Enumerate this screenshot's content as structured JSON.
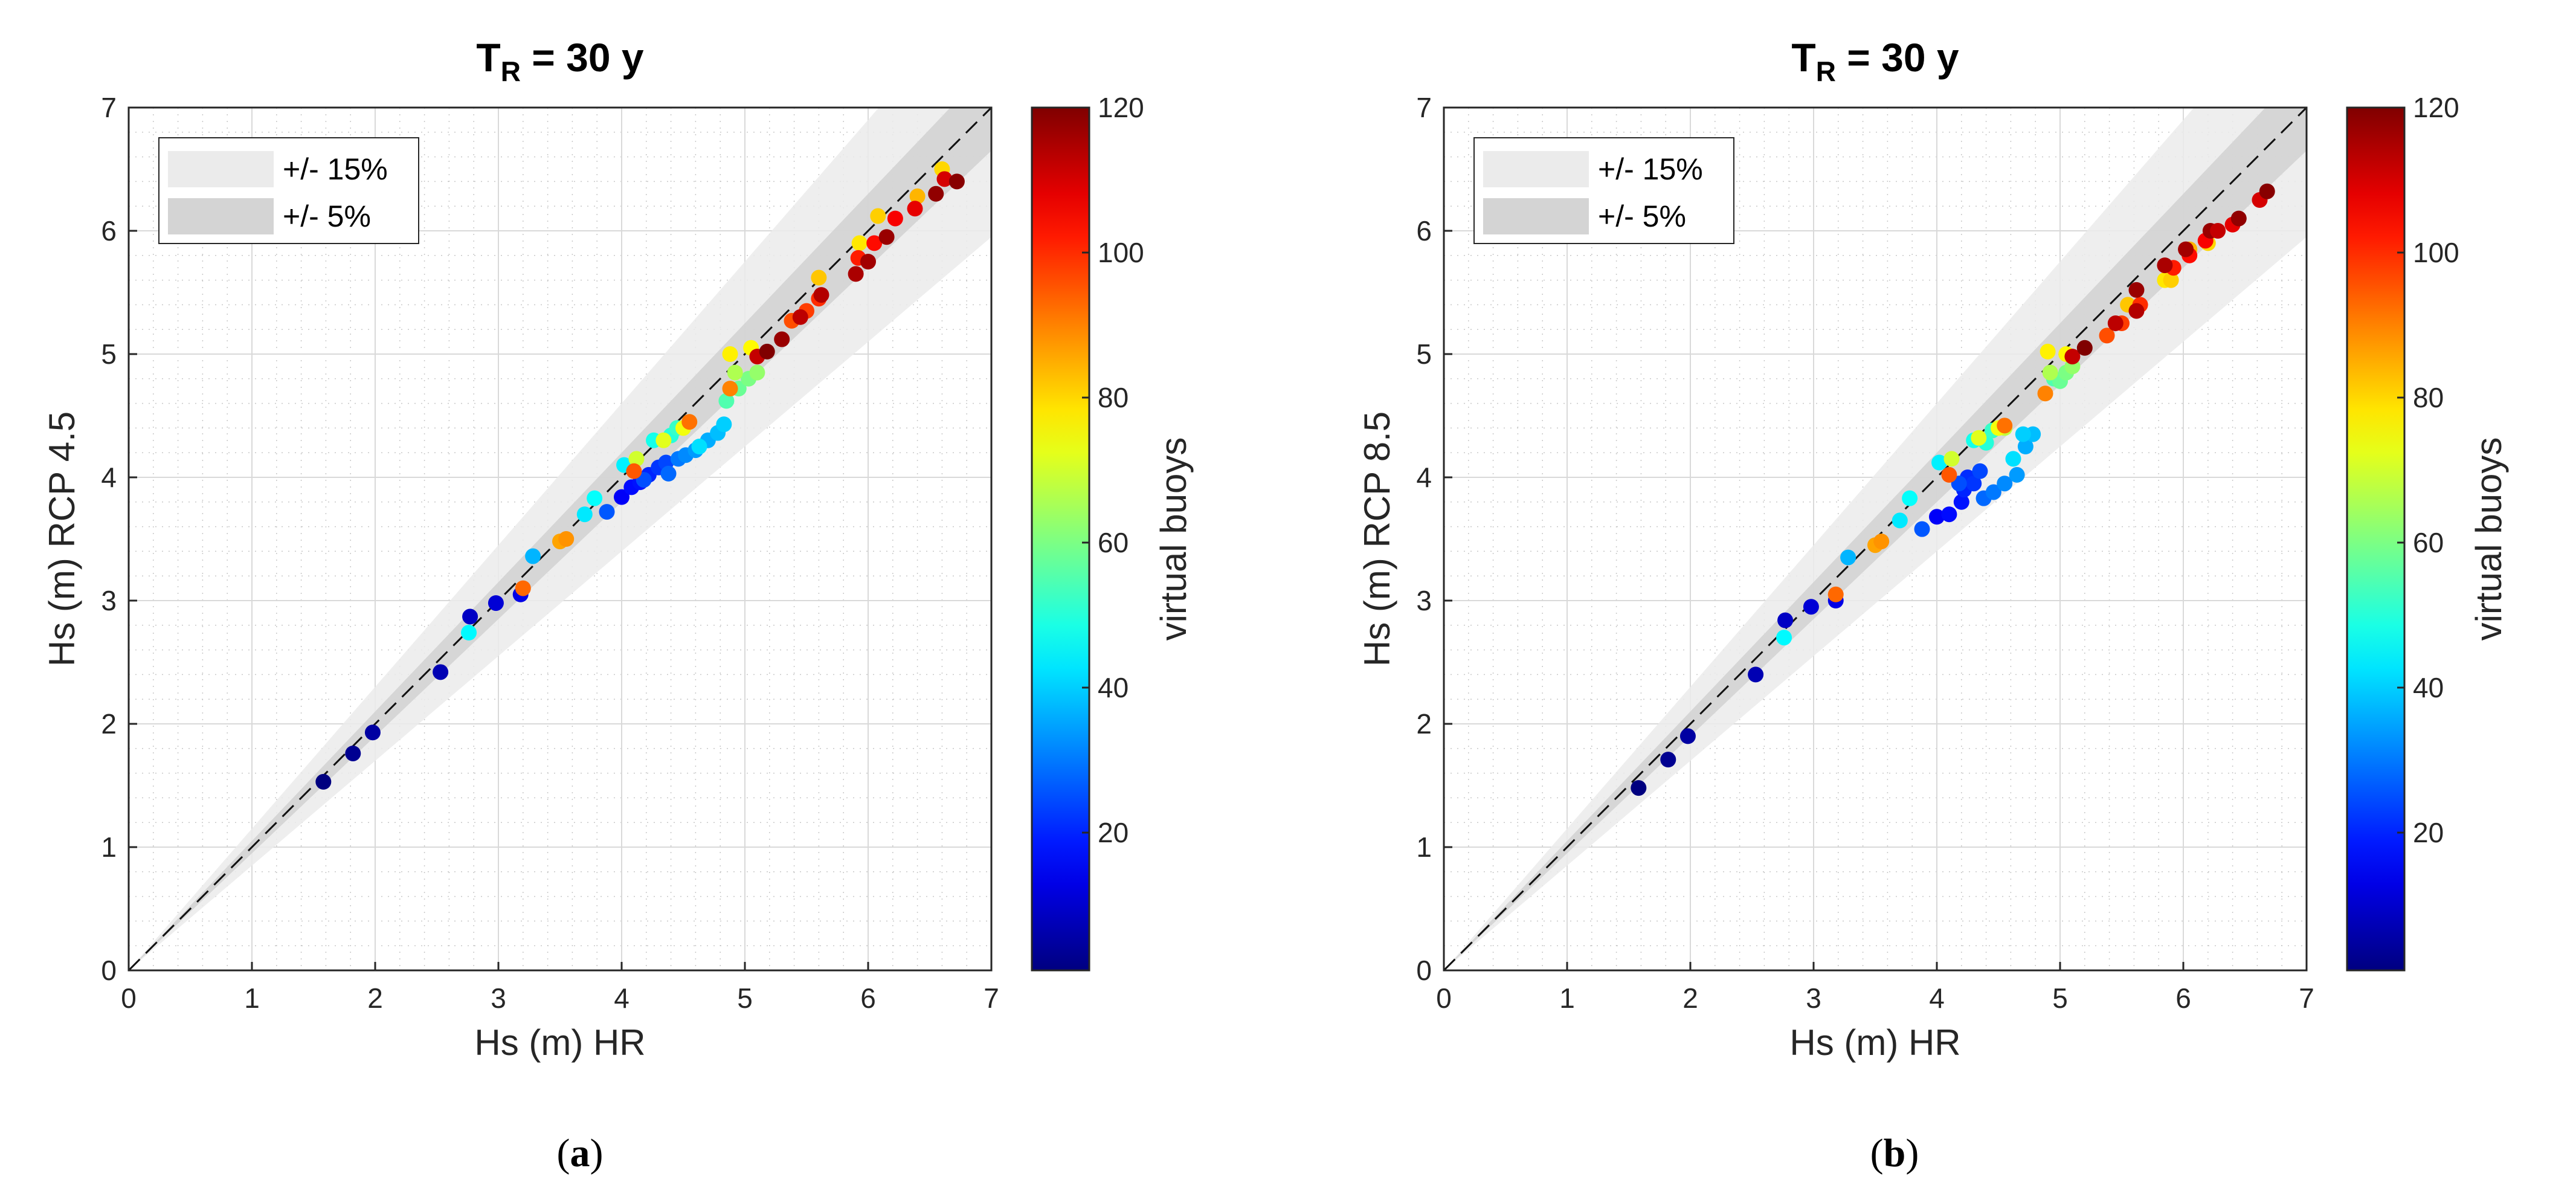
{
  "chart_data": [
    {
      "type": "scatter",
      "title_base": "T",
      "title_sub": "R",
      "title_rest": " = 30 y",
      "xlabel": "Hs (m) HR",
      "ylabel": "Hs (m) RCP 4.5",
      "xlim": [
        0,
        7
      ],
      "ylim": [
        0,
        7
      ],
      "xticks": [
        0,
        1,
        2,
        3,
        4,
        5,
        6,
        7
      ],
      "yticks": [
        0,
        1,
        2,
        3,
        4,
        5,
        6,
        7
      ],
      "grid": true,
      "legend": {
        "position": "top-left",
        "entries": [
          {
            "label": "+/- 15%",
            "color": "#ebebeb"
          },
          {
            "label": "+/- 5%",
            "color": "#d4d4d4"
          }
        ]
      },
      "bands": [
        0.15,
        0.05
      ],
      "reference_line": "y = x (dashed)",
      "colorbar": {
        "label": "virtual buoys",
        "range": [
          1,
          120
        ],
        "ticks": [
          20,
          40,
          60,
          80,
          100,
          120
        ],
        "colormap": "jet"
      },
      "caption_open": "(",
      "caption_letter": "a",
      "caption_close": ")",
      "points": [
        {
          "x": 1.58,
          "y": 1.53,
          "c": 1
        },
        {
          "x": 1.82,
          "y": 1.76,
          "c": 3
        },
        {
          "x": 1.98,
          "y": 1.93,
          "c": 5
        },
        {
          "x": 2.53,
          "y": 2.42,
          "c": 7
        },
        {
          "x": 2.77,
          "y": 2.87,
          "c": 9
        },
        {
          "x": 2.98,
          "y": 2.98,
          "c": 11
        },
        {
          "x": 3.18,
          "y": 3.05,
          "c": 13
        },
        {
          "x": 4.0,
          "y": 3.84,
          "c": 15
        },
        {
          "x": 4.08,
          "y": 3.92,
          "c": 17
        },
        {
          "x": 4.15,
          "y": 3.96,
          "c": 18
        },
        {
          "x": 4.22,
          "y": 4.02,
          "c": 20
        },
        {
          "x": 4.3,
          "y": 4.08,
          "c": 22
        },
        {
          "x": 4.36,
          "y": 4.12,
          "c": 24
        },
        {
          "x": 4.18,
          "y": 3.98,
          "c": 25
        },
        {
          "x": 3.88,
          "y": 3.72,
          "c": 26
        },
        {
          "x": 4.38,
          "y": 4.03,
          "c": 28
        },
        {
          "x": 4.46,
          "y": 4.15,
          "c": 30
        },
        {
          "x": 4.52,
          "y": 4.18,
          "c": 32
        },
        {
          "x": 4.6,
          "y": 4.22,
          "c": 34
        },
        {
          "x": 4.7,
          "y": 4.3,
          "c": 36
        },
        {
          "x": 4.78,
          "y": 4.36,
          "c": 38
        },
        {
          "x": 4.83,
          "y": 4.43,
          "c": 40
        },
        {
          "x": 4.63,
          "y": 4.25,
          "c": 42
        },
        {
          "x": 3.28,
          "y": 3.36,
          "c": 37
        },
        {
          "x": 2.76,
          "y": 2.74,
          "c": 45
        },
        {
          "x": 3.7,
          "y": 3.7,
          "c": 43
        },
        {
          "x": 3.78,
          "y": 3.83,
          "c": 46
        },
        {
          "x": 4.02,
          "y": 4.1,
          "c": 44
        },
        {
          "x": 4.26,
          "y": 4.3,
          "c": 48
        },
        {
          "x": 4.4,
          "y": 4.34,
          "c": 50
        },
        {
          "x": 4.45,
          "y": 4.4,
          "c": 52
        },
        {
          "x": 4.85,
          "y": 4.62,
          "c": 55
        },
        {
          "x": 4.95,
          "y": 4.72,
          "c": 58
        },
        {
          "x": 5.03,
          "y": 4.8,
          "c": 60
        },
        {
          "x": 5.1,
          "y": 4.85,
          "c": 63
        },
        {
          "x": 4.92,
          "y": 4.85,
          "c": 66
        },
        {
          "x": 4.55,
          "y": 4.45,
          "c": 68
        },
        {
          "x": 4.12,
          "y": 4.15,
          "c": 70
        },
        {
          "x": 4.34,
          "y": 4.3,
          "c": 72
        },
        {
          "x": 4.5,
          "y": 4.4,
          "c": 74
        },
        {
          "x": 4.88,
          "y": 5.0,
          "c": 77
        },
        {
          "x": 5.05,
          "y": 5.05,
          "c": 76
        },
        {
          "x": 5.93,
          "y": 5.9,
          "c": 78
        },
        {
          "x": 6.6,
          "y": 6.5,
          "c": 80
        },
        {
          "x": 5.6,
          "y": 5.62,
          "c": 82
        },
        {
          "x": 6.4,
          "y": 6.28,
          "c": 84
        },
        {
          "x": 6.08,
          "y": 6.12,
          "c": 81
        },
        {
          "x": 3.5,
          "y": 3.48,
          "c": 86
        },
        {
          "x": 3.55,
          "y": 3.5,
          "c": 88
        },
        {
          "x": 4.88,
          "y": 4.72,
          "c": 90
        },
        {
          "x": 4.55,
          "y": 4.45,
          "c": 92
        },
        {
          "x": 3.2,
          "y": 3.1,
          "c": 93
        },
        {
          "x": 4.1,
          "y": 4.05,
          "c": 95
        },
        {
          "x": 5.38,
          "y": 5.27,
          "c": 96
        },
        {
          "x": 5.5,
          "y": 5.35,
          "c": 98
        },
        {
          "x": 5.6,
          "y": 5.45,
          "c": 100
        },
        {
          "x": 5.92,
          "y": 5.78,
          "c": 102
        },
        {
          "x": 6.05,
          "y": 5.9,
          "c": 104
        },
        {
          "x": 6.22,
          "y": 6.1,
          "c": 106
        },
        {
          "x": 6.38,
          "y": 6.18,
          "c": 108
        },
        {
          "x": 6.62,
          "y": 6.42,
          "c": 110
        },
        {
          "x": 5.1,
          "y": 4.98,
          "c": 112
        },
        {
          "x": 5.45,
          "y": 5.3,
          "c": 113
        },
        {
          "x": 5.62,
          "y": 5.48,
          "c": 114
        },
        {
          "x": 5.9,
          "y": 5.65,
          "c": 115
        },
        {
          "x": 6.0,
          "y": 5.75,
          "c": 116
        },
        {
          "x": 6.15,
          "y": 5.95,
          "c": 117
        },
        {
          "x": 6.55,
          "y": 6.3,
          "c": 118
        },
        {
          "x": 6.72,
          "y": 6.4,
          "c": 119
        },
        {
          "x": 5.18,
          "y": 5.02,
          "c": 120
        },
        {
          "x": 5.3,
          "y": 5.12,
          "c": 117
        }
      ]
    },
    {
      "type": "scatter",
      "title_base": "T",
      "title_sub": "R",
      "title_rest": " = 30 y",
      "xlabel": "Hs (m) HR",
      "ylabel": "Hs (m) RCP 8.5",
      "xlim": [
        0,
        7
      ],
      "ylim": [
        0,
        7
      ],
      "xticks": [
        0,
        1,
        2,
        3,
        4,
        5,
        6,
        7
      ],
      "yticks": [
        0,
        1,
        2,
        3,
        4,
        5,
        6,
        7
      ],
      "grid": true,
      "legend": {
        "position": "top-left",
        "entries": [
          {
            "label": "+/- 15%",
            "color": "#ebebeb"
          },
          {
            "label": "+/- 5%",
            "color": "#d4d4d4"
          }
        ]
      },
      "bands": [
        0.15,
        0.05
      ],
      "reference_line": "y = x (dashed)",
      "colorbar": {
        "label": "virtual buoys",
        "range": [
          1,
          120
        ],
        "ticks": [
          20,
          40,
          60,
          80,
          100,
          120
        ],
        "colormap": "jet"
      },
      "caption_open": "(",
      "caption_letter": "b",
      "caption_close": ")",
      "points": [
        {
          "x": 1.58,
          "y": 1.48,
          "c": 1
        },
        {
          "x": 1.82,
          "y": 1.71,
          "c": 3
        },
        {
          "x": 1.98,
          "y": 1.9,
          "c": 5
        },
        {
          "x": 2.53,
          "y": 2.4,
          "c": 7
        },
        {
          "x": 2.77,
          "y": 2.84,
          "c": 9
        },
        {
          "x": 2.98,
          "y": 2.95,
          "c": 11
        },
        {
          "x": 3.18,
          "y": 3.0,
          "c": 13
        },
        {
          "x": 4.0,
          "y": 3.68,
          "c": 15
        },
        {
          "x": 4.1,
          "y": 3.7,
          "c": 17
        },
        {
          "x": 4.2,
          "y": 3.8,
          "c": 18
        },
        {
          "x": 4.22,
          "y": 3.9,
          "c": 20
        },
        {
          "x": 4.25,
          "y": 4.0,
          "c": 21
        },
        {
          "x": 4.3,
          "y": 3.95,
          "c": 22
        },
        {
          "x": 4.35,
          "y": 4.05,
          "c": 24
        },
        {
          "x": 4.18,
          "y": 3.95,
          "c": 25
        },
        {
          "x": 3.88,
          "y": 3.58,
          "c": 26
        },
        {
          "x": 4.38,
          "y": 3.83,
          "c": 28
        },
        {
          "x": 4.46,
          "y": 3.88,
          "c": 30
        },
        {
          "x": 4.55,
          "y": 3.95,
          "c": 32
        },
        {
          "x": 4.65,
          "y": 4.02,
          "c": 34
        },
        {
          "x": 4.72,
          "y": 4.25,
          "c": 36
        },
        {
          "x": 4.78,
          "y": 4.35,
          "c": 38
        },
        {
          "x": 4.7,
          "y": 4.35,
          "c": 40
        },
        {
          "x": 4.62,
          "y": 4.15,
          "c": 42
        },
        {
          "x": 3.28,
          "y": 3.35,
          "c": 37
        },
        {
          "x": 2.76,
          "y": 2.7,
          "c": 45
        },
        {
          "x": 3.7,
          "y": 3.65,
          "c": 43
        },
        {
          "x": 3.78,
          "y": 3.83,
          "c": 46
        },
        {
          "x": 4.02,
          "y": 4.12,
          "c": 44
        },
        {
          "x": 4.3,
          "y": 4.3,
          "c": 48
        },
        {
          "x": 4.4,
          "y": 4.28,
          "c": 50
        },
        {
          "x": 4.45,
          "y": 4.38,
          "c": 52
        },
        {
          "x": 4.95,
          "y": 4.8,
          "c": 55
        },
        {
          "x": 5.0,
          "y": 4.78,
          "c": 58
        },
        {
          "x": 5.05,
          "y": 4.85,
          "c": 60
        },
        {
          "x": 5.1,
          "y": 4.9,
          "c": 63
        },
        {
          "x": 4.92,
          "y": 4.85,
          "c": 66
        },
        {
          "x": 4.55,
          "y": 4.4,
          "c": 68
        },
        {
          "x": 4.12,
          "y": 4.15,
          "c": 70
        },
        {
          "x": 4.34,
          "y": 4.32,
          "c": 72
        },
        {
          "x": 4.5,
          "y": 4.4,
          "c": 74
        },
        {
          "x": 4.9,
          "y": 5.02,
          "c": 77
        },
        {
          "x": 5.05,
          "y": 5.0,
          "c": 76
        },
        {
          "x": 5.85,
          "y": 5.6,
          "c": 78
        },
        {
          "x": 6.2,
          "y": 5.9,
          "c": 80
        },
        {
          "x": 5.55,
          "y": 5.4,
          "c": 82
        },
        {
          "x": 6.05,
          "y": 5.85,
          "c": 84
        },
        {
          "x": 5.9,
          "y": 5.6,
          "c": 81
        },
        {
          "x": 3.5,
          "y": 3.45,
          "c": 86
        },
        {
          "x": 3.55,
          "y": 3.48,
          "c": 88
        },
        {
          "x": 4.88,
          "y": 4.68,
          "c": 90
        },
        {
          "x": 4.55,
          "y": 4.42,
          "c": 92
        },
        {
          "x": 3.18,
          "y": 3.05,
          "c": 93
        },
        {
          "x": 4.1,
          "y": 4.02,
          "c": 95
        },
        {
          "x": 5.38,
          "y": 5.15,
          "c": 96
        },
        {
          "x": 5.5,
          "y": 5.25,
          "c": 98
        },
        {
          "x": 5.65,
          "y": 5.4,
          "c": 100
        },
        {
          "x": 5.92,
          "y": 5.7,
          "c": 102
        },
        {
          "x": 6.05,
          "y": 5.8,
          "c": 104
        },
        {
          "x": 6.18,
          "y": 5.92,
          "c": 106
        },
        {
          "x": 6.4,
          "y": 6.05,
          "c": 108
        },
        {
          "x": 6.62,
          "y": 6.25,
          "c": 110
        },
        {
          "x": 5.1,
          "y": 4.98,
          "c": 112
        },
        {
          "x": 5.45,
          "y": 5.25,
          "c": 113
        },
        {
          "x": 5.62,
          "y": 5.35,
          "c": 114
        },
        {
          "x": 5.85,
          "y": 5.72,
          "c": 115
        },
        {
          "x": 6.02,
          "y": 5.85,
          "c": 116
        },
        {
          "x": 6.22,
          "y": 6.0,
          "c": 117
        },
        {
          "x": 6.45,
          "y": 6.1,
          "c": 118
        },
        {
          "x": 6.68,
          "y": 6.32,
          "c": 119
        },
        {
          "x": 5.2,
          "y": 5.05,
          "c": 120
        },
        {
          "x": 5.62,
          "y": 5.52,
          "c": 117
        },
        {
          "x": 6.28,
          "y": 6.0,
          "c": 112
        }
      ]
    }
  ]
}
